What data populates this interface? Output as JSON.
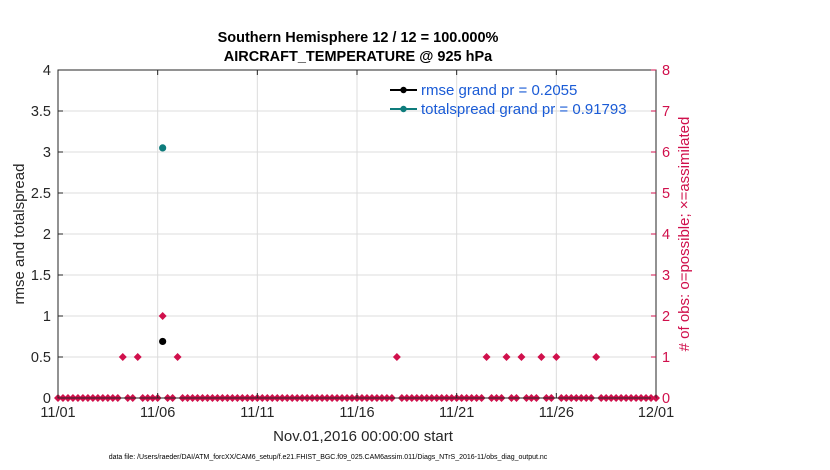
{
  "chart_data": {
    "type": "scatter",
    "title": [
      "Southern Hemisphere 12 / 12 = 100.000%",
      "AIRCRAFT_TEMPERATURE @ 925 hPa"
    ],
    "xlabel": "Nov.01,2016 00:00:00 start",
    "ylabel_left": "rmse and totalspread",
    "ylabel_right": "# of obs: o=possible; ×=assimilated",
    "footnote": "data file: /Users/raeder/DAI/ATM_forcXX/CAM6_setup/f.e21.FHIST_BGC.f09_025.CAM6assim.011/Diags_NTrS_2016-11/obs_diag_output.nc",
    "x_tick_labels": [
      "11/01",
      "11/06",
      "11/11",
      "11/16",
      "11/21",
      "11/26",
      "12/01"
    ],
    "x_tick_days": [
      0,
      5,
      10,
      15,
      20,
      25,
      30
    ],
    "xlim": [
      0,
      30
    ],
    "ylim_left": [
      0,
      4
    ],
    "yticks_left": [
      "0",
      "0.5",
      "1",
      "1.5",
      "2",
      "2.5",
      "3",
      "3.5",
      "4"
    ],
    "ylim_right": [
      0,
      8
    ],
    "yticks_right": [
      "0",
      "1",
      "2",
      "3",
      "4",
      "5",
      "6",
      "7",
      "8"
    ],
    "grid": true,
    "legend_position": "top-right",
    "series": [
      {
        "name": "rmse grand pr = 0.2055",
        "color": "#000000",
        "axis": "left",
        "points": [
          [
            5.25,
            0.69
          ]
        ]
      },
      {
        "name": "totalspread grand pr = 0.91793",
        "color": "#0e7c7c",
        "axis": "left",
        "points": [
          [
            5.25,
            3.05
          ]
        ]
      }
    ],
    "obs_counts": {
      "color": "#d0104c",
      "axis": "right",
      "x_step": 0.25,
      "n_bins": 121,
      "nonzero": [
        [
          3.25,
          1
        ],
        [
          4.0,
          1
        ],
        [
          5.25,
          2
        ],
        [
          6.0,
          1
        ],
        [
          17.0,
          1
        ],
        [
          21.5,
          1
        ],
        [
          22.5,
          1
        ],
        [
          23.25,
          1
        ],
        [
          24.25,
          1
        ],
        [
          25.0,
          1
        ],
        [
          27.0,
          1
        ]
      ]
    }
  }
}
